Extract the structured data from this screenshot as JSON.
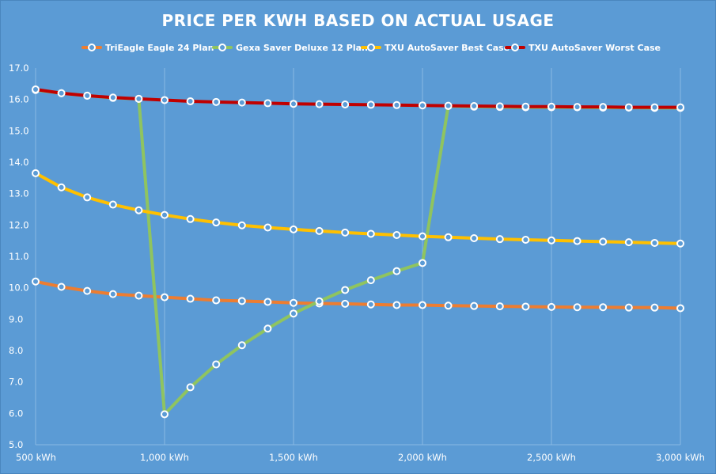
{
  "chart_data": {
    "type": "line",
    "title": "PRICE PER KWH BASED ON ACTUAL USAGE",
    "xlabel": "",
    "ylabel": "",
    "xlim": [
      500,
      3000
    ],
    "ylim": [
      5.0,
      17.0
    ],
    "x_ticks": [
      500,
      1000,
      1500,
      2000,
      2500,
      3000
    ],
    "x_tick_labels": [
      "500 kWh",
      "1,000 kWh",
      "1,500 kWh",
      "2,000 kWh",
      "2,500 kWh",
      "3,000 kWh"
    ],
    "y_ticks": [
      5.0,
      6.0,
      7.0,
      8.0,
      9.0,
      10.0,
      11.0,
      12.0,
      13.0,
      14.0,
      15.0,
      16.0,
      17.0
    ],
    "y_tick_labels": [
      "5.0",
      "6.0",
      "7.0",
      "8.0",
      "9.0",
      "10.0",
      "11.0",
      "12.0",
      "13.0",
      "14.0",
      "15.0",
      "16.0",
      "17.0"
    ],
    "grid": "vertical",
    "legend_position": "top",
    "x": [
      500,
      600,
      700,
      800,
      900,
      1000,
      1100,
      1200,
      1300,
      1400,
      1500,
      1600,
      1700,
      1800,
      1900,
      2000,
      2100,
      2200,
      2300,
      2400,
      2500,
      2600,
      2700,
      2800,
      2900,
      3000
    ],
    "series": [
      {
        "name": "TriEagle Eagle 24 Plan",
        "color": "#ed7d31",
        "values": [
          10.2,
          10.03,
          9.9,
          9.8,
          9.75,
          9.7,
          9.65,
          9.6,
          9.58,
          9.55,
          9.52,
          9.5,
          9.49,
          9.47,
          9.45,
          9.45,
          9.43,
          9.42,
          9.41,
          9.4,
          9.39,
          9.38,
          9.38,
          9.37,
          9.37,
          9.35
        ]
      },
      {
        "name": "Gexa Saver Deluxe 12 Plan",
        "color": "#8fc460",
        "values": [
          16.3,
          16.2,
          16.12,
          16.05,
          16.02,
          5.97,
          6.83,
          7.56,
          8.17,
          8.7,
          9.18,
          9.57,
          9.93,
          10.24,
          10.53,
          10.79,
          15.79,
          15.77,
          15.76,
          15.75,
          15.75,
          15.75,
          15.74,
          15.74,
          15.73,
          15.73
        ]
      },
      {
        "name": "TXU AutoSaver Best Case",
        "color": "#ffc000",
        "values": [
          13.65,
          13.2,
          12.88,
          12.65,
          12.47,
          12.32,
          12.19,
          12.08,
          11.99,
          11.92,
          11.86,
          11.81,
          11.76,
          11.72,
          11.68,
          11.64,
          11.61,
          11.58,
          11.55,
          11.53,
          11.51,
          11.49,
          11.47,
          11.45,
          11.43,
          11.41
        ]
      },
      {
        "name": "TXU AutoSaver Worst Case",
        "color": "#c00000",
        "values": [
          16.32,
          16.2,
          16.12,
          16.06,
          16.02,
          15.98,
          15.94,
          15.92,
          15.9,
          15.88,
          15.86,
          15.85,
          15.84,
          15.83,
          15.82,
          15.81,
          15.8,
          15.79,
          15.78,
          15.77,
          15.77,
          15.76,
          15.76,
          15.75,
          15.75,
          15.75
        ]
      }
    ]
  }
}
